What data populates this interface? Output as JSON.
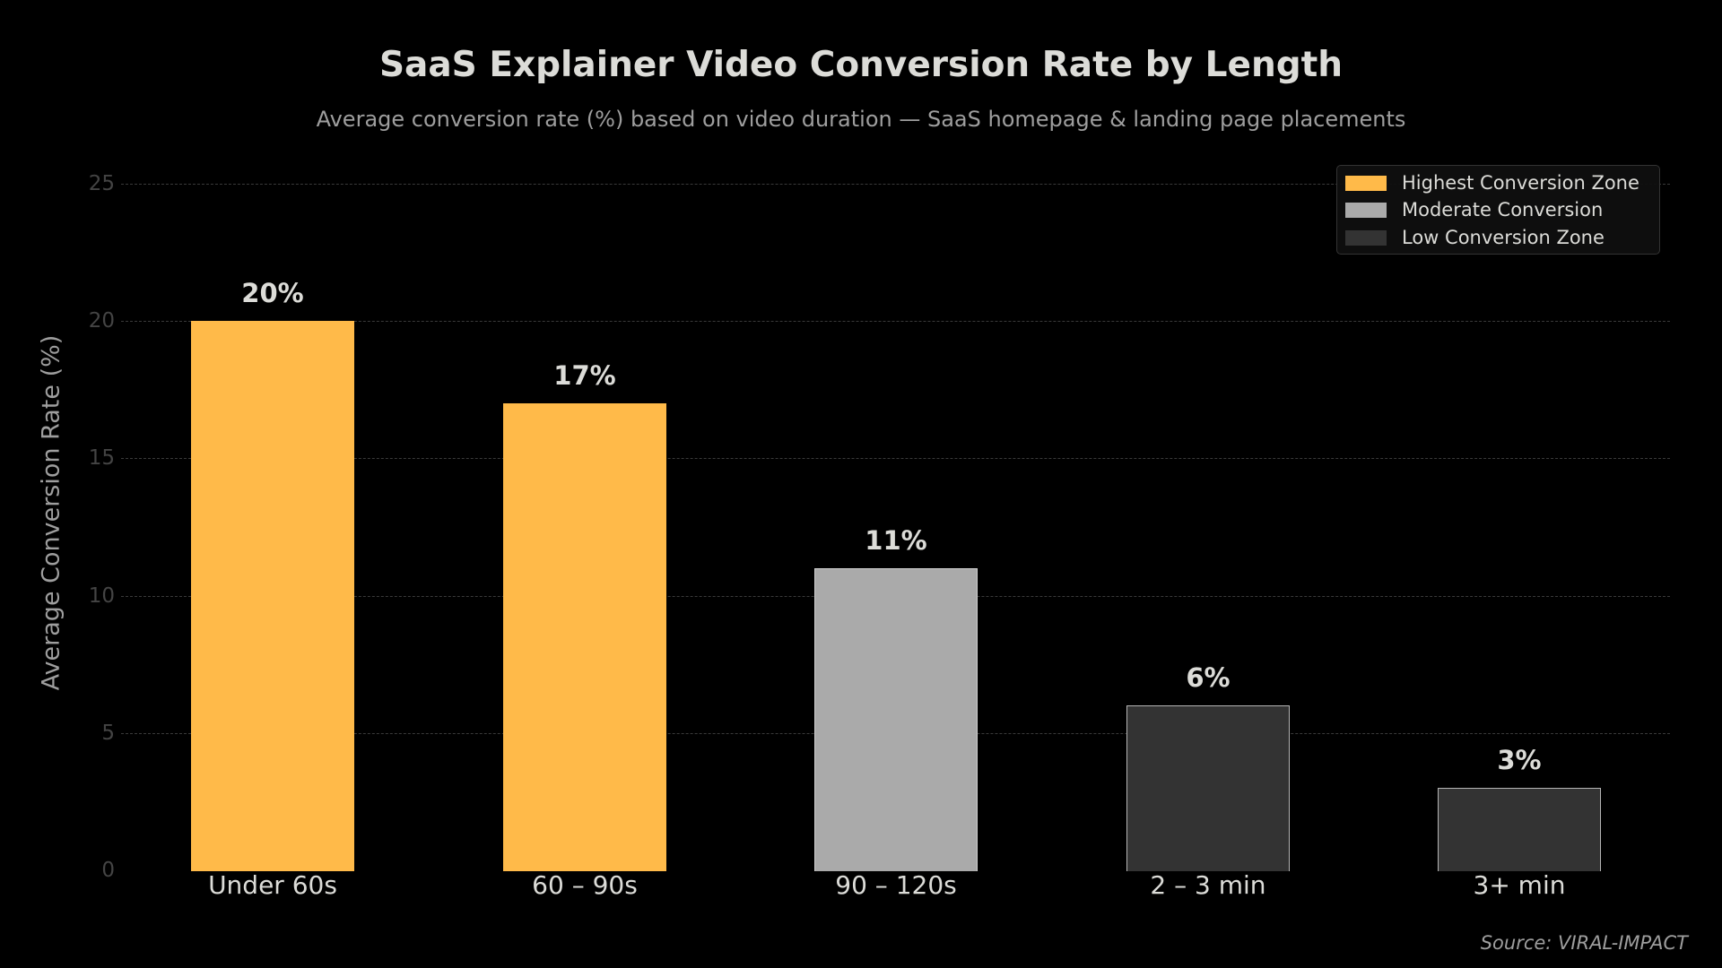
{
  "title": "SaaS Explainer Video Conversion Rate by Length",
  "subtitle": "Average conversion rate (%) based on video duration — SaaS homepage & landing page placements",
  "source": "Source: VIRAL-IMPACT",
  "colors": {
    "highest": "#FFBA49",
    "moderate": "#AAAAAA",
    "low": "#333333",
    "background": "#000000"
  },
  "legend": [
    {
      "label": "Highest Conversion Zone",
      "color": "#FFBA49"
    },
    {
      "label": "Moderate Conversion",
      "color": "#AAAAAA"
    },
    {
      "label": "Low Conversion Zone",
      "color": "#333333"
    }
  ],
  "chart_data": {
    "type": "bar",
    "title": "SaaS Explainer Video Conversion Rate by Length",
    "subtitle": "Average conversion rate (%) based on video duration — SaaS homepage & landing page placements",
    "xlabel": "",
    "ylabel": "Average Conversion Rate (%)",
    "categories": [
      "Under 60s",
      "60 – 90s",
      "90 – 120s",
      "2 – 3 min",
      "3+ min"
    ],
    "values": [
      20,
      17,
      11,
      6,
      3
    ],
    "value_labels": [
      "20%",
      "17%",
      "11%",
      "6%",
      "3%"
    ],
    "zones": [
      "Highest Conversion Zone",
      "Highest Conversion Zone",
      "Moderate Conversion",
      "Low Conversion Zone",
      "Low Conversion Zone"
    ],
    "ylim": [
      0,
      25
    ],
    "yticks": [
      0,
      5,
      10,
      15,
      20,
      25
    ],
    "grid": true,
    "legend_position": "upper right",
    "source": "Source: VIRAL-IMPACT"
  }
}
